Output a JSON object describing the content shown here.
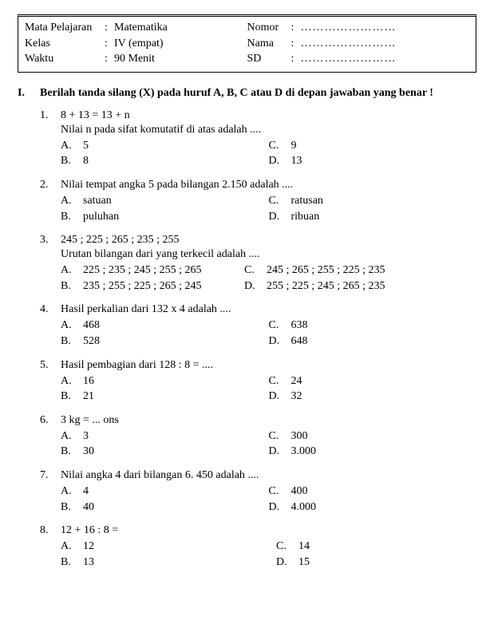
{
  "header": {
    "left": {
      "l1_label": "Mata Pelajaran",
      "l1_val": "Matematika",
      "l2_label": "Kelas",
      "l2_val": "IV (empat)",
      "l3_label": "Waktu",
      "l3_val": "90 Menit"
    },
    "right": {
      "r1_label": "Nomor",
      "r1_val": "……………………",
      "r2_label": "Nama",
      "r2_val": "……………………",
      "r3_label": "SD",
      "r3_val": "……………………"
    }
  },
  "section": {
    "num": "I.",
    "text": "Berilah tanda silang (X) pada huruf A, B, C atau D di depan jawaban yang benar !"
  },
  "q1": {
    "num": "1.",
    "line1": "8  +  13  =   13  +  n",
    "line2": "Nilai n pada sifat komutatif di atas adalah ....",
    "a": "5",
    "b": "8",
    "c": "9",
    "d": "13"
  },
  "q2": {
    "num": "2.",
    "text": "Nilai tempat angka 5 pada bilangan 2.150 adalah ....",
    "a": "satuan",
    "b": "puluhan",
    "c": "ratusan",
    "d": "ribuan"
  },
  "q3": {
    "num": "3.",
    "line1": "245 ;  225 ;  265 ;  235 ;  255",
    "line2": "Urutan bilangan dari yang terkecil adalah ....",
    "a": "225 ; 235 ; 245 ; 255 ; 265",
    "b": "235 ; 255 ; 225 ; 265 ; 245",
    "c": "245 ; 265 ; 255 ; 225 ; 235",
    "d": "255 ; 225 ; 245 ; 265 ; 235"
  },
  "q4": {
    "num": "4.",
    "text": "Hasil perkalian dari 132 x 4 adalah ....",
    "a": "468",
    "b": "528",
    "c": "638",
    "d": "648"
  },
  "q5": {
    "num": "5.",
    "text": "Hasil pembagian dari 128 : 8 = ....",
    "a": "16",
    "b": "21",
    "c": "24",
    "d": "32"
  },
  "q6": {
    "num": "6.",
    "text": "3 kg = ... ons",
    "a": "3",
    "b": "30",
    "c": "300",
    "d": "3.000"
  },
  "q7": {
    "num": "7.",
    "text": "Nilai angka 4 dari bilangan 6. 450 adalah ....",
    "a": "4",
    "b": "40",
    "c": "400",
    "d": "4.000"
  },
  "q8": {
    "num": "8.",
    "text": "12 + 16 : 8 =",
    "a": "12",
    "b": "13",
    "c": "14",
    "d": "15"
  },
  "letters": {
    "A": "A.",
    "B": "B.",
    "C": "C.",
    "D": "D."
  }
}
